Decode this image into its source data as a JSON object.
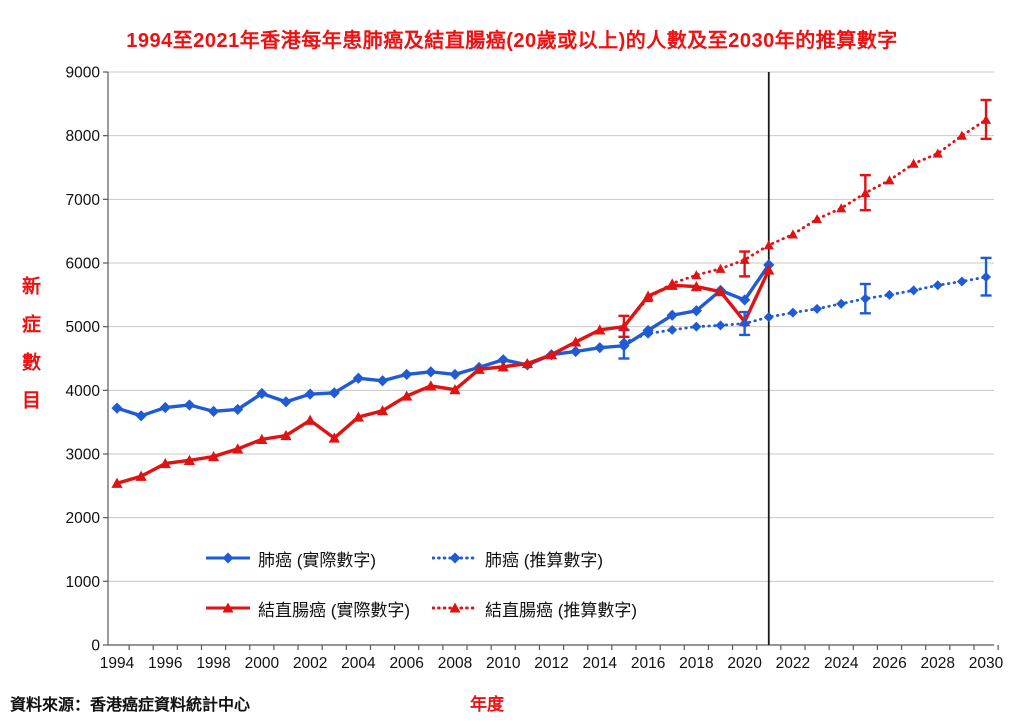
{
  "title": "1994至2021年香港每年患肺癌及結直腸癌(20歲或以上)的人數及至2030年的推算數字",
  "source_note": "資料來源：香港癌症資料統計中心",
  "colors": {
    "title_red": "#ee1111",
    "lung_blue": "#1f5bd4",
    "crc_red": "#e01212",
    "gridline": "#c8c8c8",
    "axis": "#595959",
    "tick_label": "#111111",
    "reference_line": "#1a1a1a"
  },
  "chart_data": {
    "type": "line",
    "title": "1994至2021年香港每年患肺癌及結直腸癌(20歲或以上)的人數及至2030年的推算數字",
    "xlabel": "年度",
    "ylabel": "新症數目",
    "ylim": [
      0,
      9000
    ],
    "ytick_step": 1000,
    "x_range": [
      1994,
      2030
    ],
    "xtick_label_step": 2,
    "grid": true,
    "reference_line_x": 2021,
    "legend_position": "inside-bottom-left",
    "series": [
      {
        "name": "肺癌 (實際數字)",
        "color": "#1f5bd4",
        "style": "solid",
        "marker": "diamond",
        "x_start": 1994,
        "values": [
          3720,
          3600,
          3730,
          3770,
          3670,
          3700,
          3950,
          3820,
          3940,
          3960,
          4190,
          4150,
          4250,
          4290,
          4250,
          4360,
          4480,
          4400,
          4560,
          4610,
          4670,
          4700,
          4940,
          5180,
          5250,
          5570,
          5420,
          5970
        ]
      },
      {
        "name": "肺癌 (推算數字)",
        "color": "#1f5bd4",
        "style": "dotted",
        "marker": "diamond",
        "x_start": 2015,
        "values": [
          4750,
          4890,
          4950,
          5000,
          5020,
          5050,
          5150,
          5220,
          5280,
          5360,
          5440,
          5500,
          5570,
          5650,
          5710,
          5780
        ],
        "error_bars": [
          {
            "x": 2015,
            "low": 4500,
            "high": 4950
          },
          {
            "x": 2020,
            "low": 4870,
            "high": 5230
          },
          {
            "x": 2025,
            "low": 5210,
            "high": 5670
          },
          {
            "x": 2030,
            "low": 5490,
            "high": 6080
          }
        ]
      },
      {
        "name": "結直腸癌 (實際數字)",
        "color": "#e01212",
        "style": "solid",
        "marker": "triangle",
        "x_start": 1994,
        "values": [
          2540,
          2650,
          2850,
          2900,
          2960,
          3080,
          3230,
          3290,
          3530,
          3250,
          3580,
          3680,
          3910,
          4070,
          4010,
          4330,
          4370,
          4420,
          4560,
          4760,
          4950,
          5000,
          5480,
          5650,
          5630,
          5550,
          5080,
          5890
        ]
      },
      {
        "name": "結直腸癌 (推算數字)",
        "color": "#e01212",
        "style": "dotted",
        "marker": "triangle",
        "x_start": 2015,
        "values": [
          5000,
          5450,
          5680,
          5810,
          5910,
          6050,
          6280,
          6450,
          6690,
          6860,
          7100,
          7300,
          7560,
          7720,
          8000,
          8250
        ],
        "error_bars": [
          {
            "x": 2015,
            "low": 4840,
            "high": 5170
          },
          {
            "x": 2020,
            "low": 5790,
            "high": 6180
          },
          {
            "x": 2025,
            "low": 6830,
            "high": 7380
          },
          {
            "x": 2030,
            "low": 7950,
            "high": 8560
          }
        ]
      }
    ]
  }
}
